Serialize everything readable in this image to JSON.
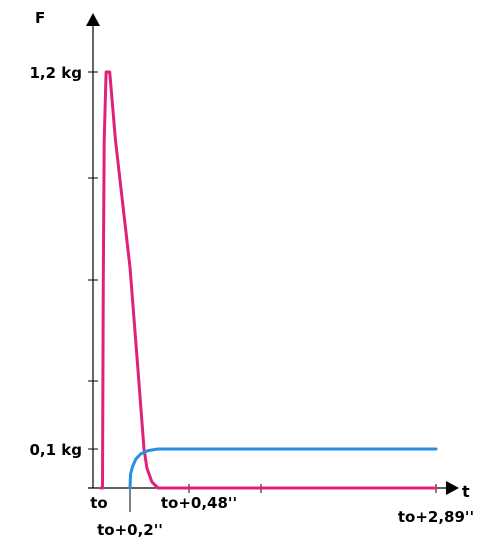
{
  "chart_data": {
    "type": "line",
    "axis_labels": {
      "y": "F",
      "x": "t"
    },
    "y_tick_labels": [
      {
        "text": "1,2 kg",
        "value": 1.2
      },
      {
        "text": "0,1 kg",
        "value": 0.1
      }
    ],
    "x_tick_labels": [
      {
        "text": "to",
        "value": 0
      },
      {
        "text": "to+0,2''",
        "value": 0.2
      },
      {
        "text": "to+0,48''",
        "value": 0.48
      },
      {
        "text": "to+2,89''",
        "value": 2.89
      }
    ],
    "series": [
      {
        "color": "#e0207a",
        "points": [
          [
            0,
            0
          ],
          [
            0.01,
            0
          ],
          [
            0.016,
            0.6
          ],
          [
            0.022,
            1.0
          ],
          [
            0.035,
            1.2
          ],
          [
            0.06,
            1.2
          ],
          [
            0.1,
            1.0
          ],
          [
            0.2,
            0.63
          ],
          [
            0.28,
            0.33
          ],
          [
            0.34,
            0.1
          ],
          [
            0.37,
            0.05
          ],
          [
            0.42,
            0.015
          ],
          [
            0.48,
            0
          ],
          [
            1.5,
            0
          ],
          [
            2.89,
            0
          ]
        ]
      },
      {
        "color": "#2a8ee0",
        "points": [
          [
            0.2,
            0
          ],
          [
            0.205,
            0.035
          ],
          [
            0.225,
            0.055
          ],
          [
            0.26,
            0.075
          ],
          [
            0.31,
            0.088
          ],
          [
            0.38,
            0.096
          ],
          [
            0.48,
            0.1
          ],
          [
            1.0,
            0.1
          ],
          [
            2.89,
            0.1
          ]
        ]
      }
    ],
    "grid": false,
    "legend": "none"
  }
}
